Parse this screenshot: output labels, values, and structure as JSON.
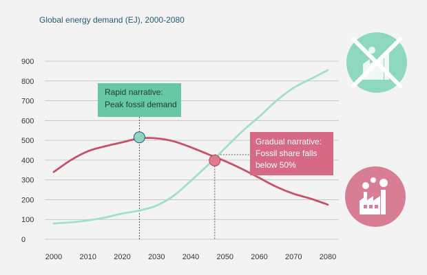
{
  "chart_data": {
    "type": "line",
    "title": "Global energy demand (EJ), 2000-2080",
    "xlabel": "",
    "ylabel": "",
    "x_ticks": [
      "2000",
      "2010",
      "2020",
      "2030",
      "2040",
      "2050",
      "2060",
      "2070",
      "2080"
    ],
    "y_ticks": [
      "0",
      "100",
      "200",
      "300",
      "400",
      "500",
      "600",
      "700",
      "800",
      "900"
    ],
    "xlim": [
      2000,
      2080
    ],
    "ylim": [
      0,
      900
    ],
    "grid": "horizontal",
    "series": [
      {
        "color": "#c8506a",
        "role": "fossil",
        "points": [
          [
            2000,
            340
          ],
          [
            2005,
            400
          ],
          [
            2010,
            445
          ],
          [
            2015,
            470
          ],
          [
            2020,
            490
          ],
          [
            2025,
            510
          ],
          [
            2030,
            510
          ],
          [
            2035,
            495
          ],
          [
            2040,
            465
          ],
          [
            2045,
            430
          ],
          [
            2050,
            395
          ],
          [
            2055,
            355
          ],
          [
            2060,
            310
          ],
          [
            2065,
            265
          ],
          [
            2070,
            230
          ],
          [
            2075,
            205
          ],
          [
            2080,
            175
          ]
        ]
      },
      {
        "color": "#9fe0c6",
        "role": "alternative",
        "points": [
          [
            2000,
            80
          ],
          [
            2005,
            85
          ],
          [
            2010,
            95
          ],
          [
            2015,
            110
          ],
          [
            2020,
            130
          ],
          [
            2025,
            145
          ],
          [
            2030,
            170
          ],
          [
            2035,
            220
          ],
          [
            2040,
            295
          ],
          [
            2045,
            375
          ],
          [
            2050,
            460
          ],
          [
            2055,
            545
          ],
          [
            2060,
            620
          ],
          [
            2065,
            700
          ],
          [
            2070,
            765
          ],
          [
            2075,
            810
          ],
          [
            2080,
            855
          ]
        ]
      }
    ],
    "annotations": [
      {
        "lines": [
          "Rapid narrative:",
          "Peak fossil demand"
        ],
        "marker": [
          2025,
          515
        ],
        "color": "#66c9a4",
        "marker_fill": "#8fd3c0"
      },
      {
        "lines": [
          "Gradual narrative:",
          "Fossil share falls",
          "below 50%"
        ],
        "marker": [
          2047,
          398
        ],
        "color": "#d66a85",
        "marker_fill": "#e07a8f"
      }
    ]
  },
  "icons": {
    "top": {
      "name": "no-fossil-factory-icon",
      "color": "#8ed8c0"
    },
    "bottom": {
      "name": "factory-icon",
      "color": "#d77e94"
    }
  }
}
